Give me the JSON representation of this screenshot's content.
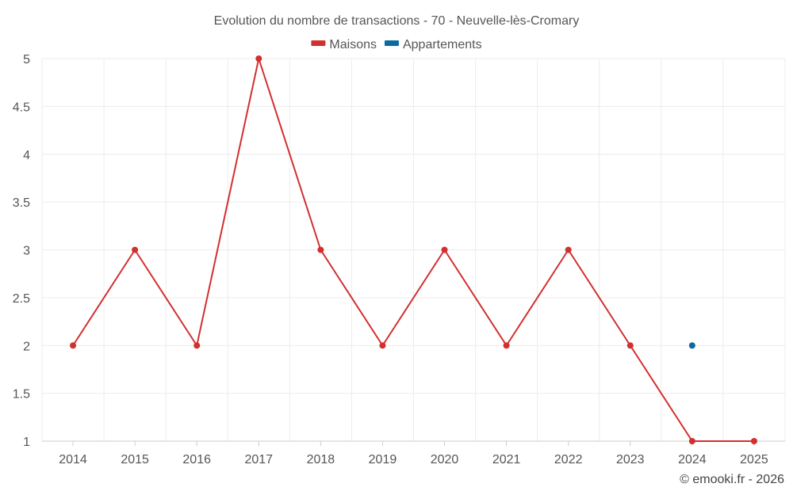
{
  "chart_data": {
    "type": "line",
    "title": "Evolution du nombre de transactions - 70 - Neuvelle-lès-Cromary",
    "categories": [
      "2014",
      "2015",
      "2016",
      "2017",
      "2018",
      "2019",
      "2020",
      "2021",
      "2022",
      "2023",
      "2024",
      "2025"
    ],
    "series": [
      {
        "name": "Maisons",
        "color": "#d32f2f",
        "values": [
          2,
          3,
          2,
          5,
          3,
          2,
          3,
          2,
          3,
          2,
          1,
          1
        ]
      },
      {
        "name": "Appartements",
        "color": "#0a6aa1",
        "values": [
          null,
          null,
          null,
          null,
          null,
          null,
          null,
          null,
          null,
          null,
          2,
          null
        ]
      }
    ],
    "ylim": [
      1,
      5
    ],
    "yticks": [
      1,
      1.5,
      2,
      2.5,
      3,
      3.5,
      4,
      4.5,
      5
    ],
    "xlabel": "",
    "ylabel": "",
    "grid": true,
    "legend_position": "top-center"
  },
  "credit": "© emooki.fr - 2026"
}
